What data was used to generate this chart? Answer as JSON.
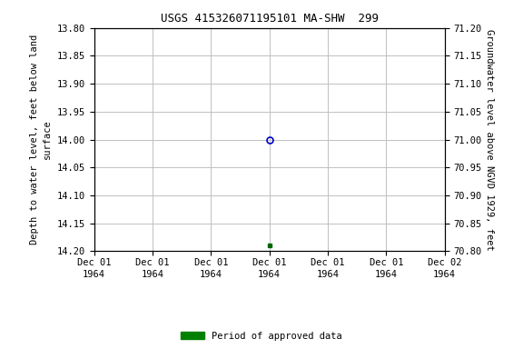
{
  "title": "USGS 415326071195101 MA-SHW  299",
  "ylabel_left": "Depth to water level, feet below land\nsurface",
  "ylabel_right": "Groundwater level above NGVD 1929, feet",
  "ylim_left": [
    14.2,
    13.8
  ],
  "ylim_right": [
    70.8,
    71.2
  ],
  "yticks_left": [
    13.8,
    13.85,
    13.9,
    13.95,
    14.0,
    14.05,
    14.1,
    14.15,
    14.2
  ],
  "yticks_right": [
    71.2,
    71.15,
    71.1,
    71.05,
    71.0,
    70.95,
    70.9,
    70.85,
    70.8
  ],
  "point_blue_x_hours": 12,
  "point_blue_y": 14.0,
  "point_green_x_hours": 12,
  "point_green_y": 14.19,
  "point_blue_color": "#0000cc",
  "point_green_color": "#006600",
  "legend_label": "Period of approved data",
  "legend_color": "#008000",
  "background_color": "#ffffff",
  "grid_color": "#c0c0c0",
  "title_fontsize": 9,
  "axis_label_fontsize": 7.5,
  "tick_fontsize": 7.5,
  "xtick_hours": [
    0,
    4,
    8,
    12,
    16,
    20,
    24
  ],
  "xtick_labels": [
    "Dec 01\n1964",
    "Dec 01\n1964",
    "Dec 01\n1964",
    "Dec 01\n1964",
    "Dec 01\n1964",
    "Dec 01\n1964",
    "Dec 02\n1964"
  ]
}
